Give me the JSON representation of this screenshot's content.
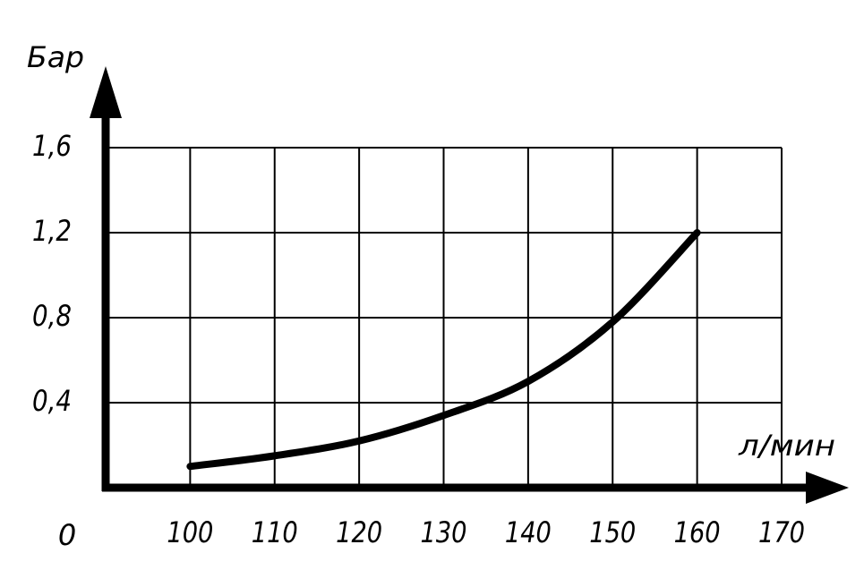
{
  "chart_data": {
    "type": "line",
    "y_label": "Бар",
    "x_label": "л/мин",
    "x": [
      100,
      110,
      120,
      130,
      140,
      150,
      160
    ],
    "series": [
      {
        "color": "#000000",
        "values": [
          0.1,
          0.15,
          0.22,
          0.34,
          0.5,
          0.78,
          1.2
        ]
      }
    ],
    "xlim": [
      90,
      170
    ],
    "xticks": [
      100,
      110,
      120,
      130,
      140,
      150,
      160,
      170
    ],
    "ylim": [
      0,
      1.6
    ],
    "yticks": [
      0,
      {
        "value": 0.4,
        "label": "0,4"
      },
      {
        "value": 0.8,
        "label": "0,8"
      },
      {
        "value": 1.2,
        "label": "1,2"
      },
      {
        "value": 1.6,
        "label": "1,6"
      }
    ],
    "grid": true
  }
}
